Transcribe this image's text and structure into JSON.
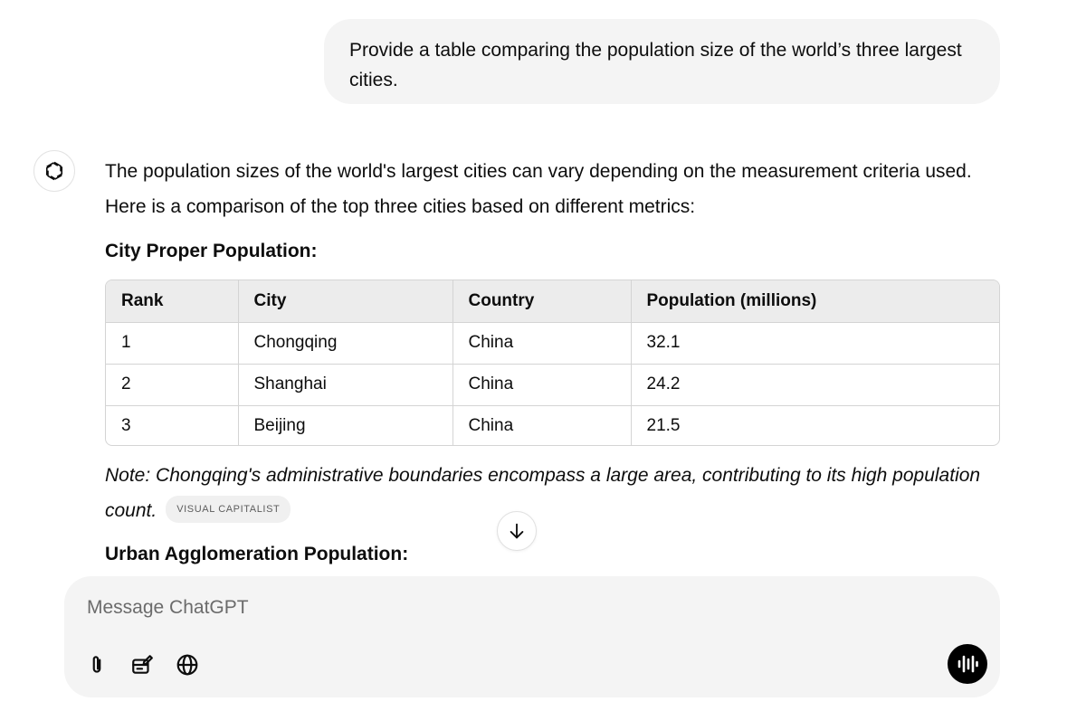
{
  "user_message": "Provide a table comparing the population size of the world’s three largest cities.",
  "assistant": {
    "avatar_icon": "openai-logo-icon",
    "intro": "The population sizes of the world's largest cities can vary depending on the measurement criteria used. Here is a comparison of the top three cities based on different metrics:",
    "section1_heading": "City Proper Population:",
    "table": {
      "headers": [
        "Rank",
        "City",
        "Country",
        "Population (millions)"
      ],
      "rows": [
        [
          "1",
          "Chongqing",
          "China",
          "32.1"
        ],
        [
          "2",
          "Shanghai",
          "China",
          "24.2"
        ],
        [
          "3",
          "Beijing",
          "China",
          "21.5"
        ]
      ]
    },
    "note": "Note: Chongqing's administrative boundaries encompass a large area, contributing to its high population count.",
    "source_badge": "VISUAL CAPITALIST",
    "section2_heading": "Urban Agglomeration Population:"
  },
  "scroll_icon": "arrow-down-icon",
  "composer": {
    "placeholder": "Message ChatGPT",
    "value": "",
    "tools": [
      "paperclip-icon",
      "canvas-icon",
      "globe-icon"
    ],
    "voice_icon": "voice-waveform-icon"
  },
  "colors": {
    "bubble_bg": "#f4f4f4",
    "table_header_bg": "#ececec",
    "border": "#d4d4d4",
    "voice_button_bg": "#000000"
  }
}
